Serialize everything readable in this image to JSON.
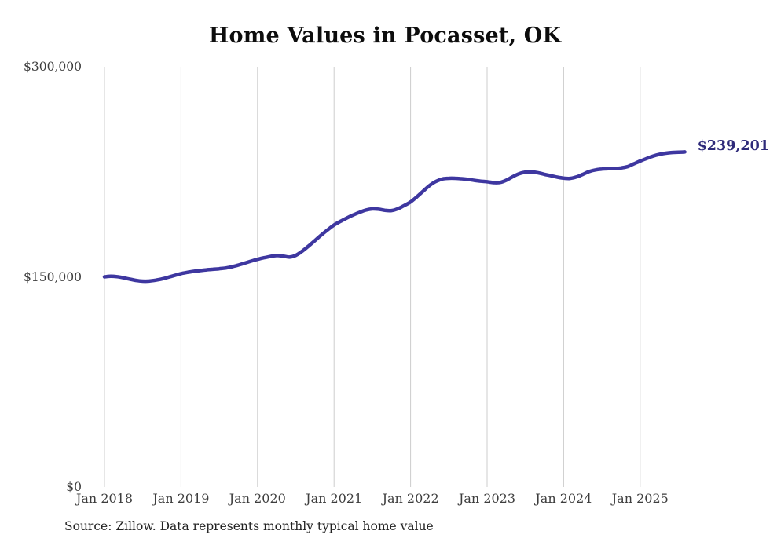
{
  "title": "Home Values in Pocasset, OK",
  "annotation": {
    "latest_value_label": "$239,201"
  },
  "source": {
    "text": "Source: Zillow. Data represents monthly typical home value"
  },
  "colors": {
    "line": "#3e37a0",
    "annotation": "#2e2a7a",
    "grid": "#cccccc",
    "title": "#0d0d0d",
    "axis_labels": "#3d3d3d",
    "source_text": "#222222",
    "background": "#ffffff"
  },
  "chart_data": {
    "type": "line",
    "title": "Home Values in Pocasset, OK",
    "xlabel": "",
    "ylabel": "",
    "ylim": [
      0,
      300000
    ],
    "grid": "vertical-only",
    "legend": "none",
    "y_ticks": [
      {
        "value": 0,
        "label": "$0"
      },
      {
        "value": 150000,
        "label": "$150,000"
      },
      {
        "value": 300000,
        "label": "$300,000"
      }
    ],
    "x_ticks": [
      {
        "month_index": 0,
        "label": "Jan 2018"
      },
      {
        "month_index": 12,
        "label": "Jan 2019"
      },
      {
        "month_index": 24,
        "label": "Jan 2020"
      },
      {
        "month_index": 36,
        "label": "Jan 2021"
      },
      {
        "month_index": 48,
        "label": "Jan 2022"
      },
      {
        "month_index": 60,
        "label": "Jan 2023"
      },
      {
        "month_index": 72,
        "label": "Jan 2024"
      },
      {
        "month_index": 84,
        "label": "Jan 2025"
      }
    ],
    "series": [
      {
        "name": "Monthly typical home value",
        "months": [
          "2018-01",
          "2018-02",
          "2018-03",
          "2018-04",
          "2018-05",
          "2018-06",
          "2018-07",
          "2018-08",
          "2018-09",
          "2018-10",
          "2018-11",
          "2018-12",
          "2019-01",
          "2019-02",
          "2019-03",
          "2019-04",
          "2019-05",
          "2019-06",
          "2019-07",
          "2019-08",
          "2019-09",
          "2019-10",
          "2019-11",
          "2019-12",
          "2020-01",
          "2020-02",
          "2020-03",
          "2020-04",
          "2020-05",
          "2020-06",
          "2020-07",
          "2020-08",
          "2020-09",
          "2020-10",
          "2020-11",
          "2020-12",
          "2021-01",
          "2021-02",
          "2021-03",
          "2021-04",
          "2021-05",
          "2021-06",
          "2021-07",
          "2021-08",
          "2021-09",
          "2021-10",
          "2021-11",
          "2021-12",
          "2022-01",
          "2022-02",
          "2022-03",
          "2022-04",
          "2022-05",
          "2022-06",
          "2022-07",
          "2022-08",
          "2022-09",
          "2022-10",
          "2022-11",
          "2022-12",
          "2023-01",
          "2023-02",
          "2023-03",
          "2023-04",
          "2023-05",
          "2023-06",
          "2023-07",
          "2023-08",
          "2023-09",
          "2023-10",
          "2023-11",
          "2023-12",
          "2024-01",
          "2024-02",
          "2024-03",
          "2024-04",
          "2024-05",
          "2024-06",
          "2024-07",
          "2024-08",
          "2024-09",
          "2024-10",
          "2024-11",
          "2024-12",
          "2025-01",
          "2025-02",
          "2025-03",
          "2025-04",
          "2025-05",
          "2025-06",
          "2025-07",
          "2025-08"
        ],
        "values": [
          150000,
          150400,
          150100,
          149300,
          148300,
          147400,
          146900,
          147000,
          147600,
          148500,
          149700,
          151000,
          152300,
          153200,
          153900,
          154500,
          155000,
          155400,
          155800,
          156300,
          157200,
          158400,
          159800,
          161200,
          162500,
          163600,
          164500,
          165200,
          164800,
          164100,
          165300,
          168300,
          171900,
          175900,
          179900,
          183600,
          187000,
          189600,
          192000,
          194200,
          196100,
          197700,
          198500,
          198300,
          197500,
          197300,
          198600,
          200900,
          203500,
          207200,
          211300,
          215300,
          218200,
          219900,
          220400,
          220400,
          220100,
          219600,
          218900,
          218300,
          217900,
          217300,
          217400,
          219000,
          221500,
          223600,
          224800,
          224900,
          224300,
          223200,
          222200,
          221200,
          220500,
          220300,
          221300,
          223200,
          225200,
          226400,
          227000,
          227200,
          227300,
          227800,
          228700,
          230700,
          232700,
          234500,
          236200,
          237500,
          238300,
          238800,
          239000,
          239201
        ]
      }
    ]
  }
}
